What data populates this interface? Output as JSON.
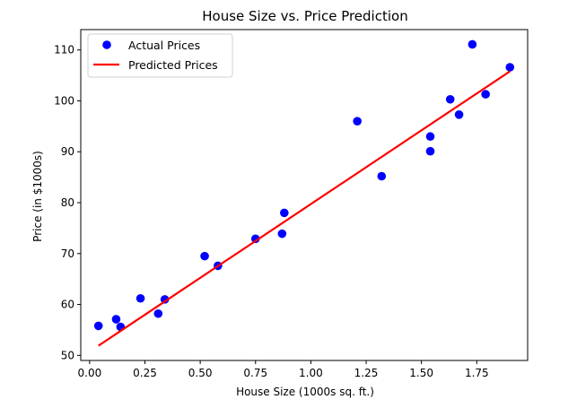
{
  "chart_data": {
    "type": "scatter",
    "title": "House Size vs. Price Prediction",
    "xlabel": "House Size (1000s sq. ft.)",
    "ylabel": "Price (in $1000s)",
    "xlim": [
      -0.04,
      1.98
    ],
    "ylim": [
      49,
      114
    ],
    "xticks": [
      0.0,
      0.25,
      0.5,
      0.75,
      1.0,
      1.25,
      1.5,
      1.75
    ],
    "xtick_labels": [
      "0.00",
      "0.25",
      "0.50",
      "0.75",
      "1.00",
      "1.25",
      "1.50",
      "1.75"
    ],
    "yticks": [
      50,
      60,
      70,
      80,
      90,
      100,
      110
    ],
    "ytick_labels": [
      "50",
      "60",
      "70",
      "80",
      "90",
      "100",
      "110"
    ],
    "grid": false,
    "legend_position": "top-left",
    "series": [
      {
        "name": "Actual Prices",
        "kind": "scatter",
        "color": "#0000ff",
        "points": [
          {
            "x": 0.04,
            "y": 55.8
          },
          {
            "x": 0.12,
            "y": 57.1
          },
          {
            "x": 0.14,
            "y": 55.6
          },
          {
            "x": 0.23,
            "y": 61.2
          },
          {
            "x": 0.31,
            "y": 58.2
          },
          {
            "x": 0.34,
            "y": 61.0
          },
          {
            "x": 0.52,
            "y": 69.5
          },
          {
            "x": 0.58,
            "y": 67.6
          },
          {
            "x": 0.75,
            "y": 72.9
          },
          {
            "x": 0.87,
            "y": 73.9
          },
          {
            "x": 0.88,
            "y": 78.0
          },
          {
            "x": 1.21,
            "y": 96.0
          },
          {
            "x": 1.32,
            "y": 85.2
          },
          {
            "x": 1.54,
            "y": 93.0
          },
          {
            "x": 1.54,
            "y": 90.1
          },
          {
            "x": 1.63,
            "y": 100.3
          },
          {
            "x": 1.67,
            "y": 97.3
          },
          {
            "x": 1.73,
            "y": 111.1
          },
          {
            "x": 1.79,
            "y": 101.3
          },
          {
            "x": 1.9,
            "y": 106.6
          }
        ]
      },
      {
        "name": "Predicted Prices",
        "kind": "line",
        "color": "#ff0000",
        "points": [
          {
            "x": 0.04,
            "y": 51.9
          },
          {
            "x": 1.9,
            "y": 105.8
          }
        ]
      }
    ]
  }
}
